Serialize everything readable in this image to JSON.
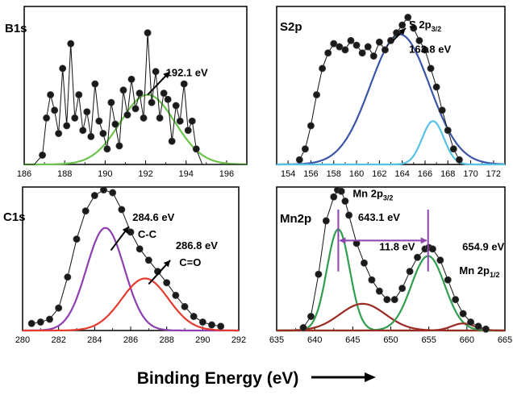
{
  "xlabel": "Binding Energy (eV)",
  "chart_data": [
    {
      "type": "line",
      "panel_label": "B1s",
      "xlim": [
        186,
        197
      ],
      "xticks": [
        186,
        188,
        190,
        192,
        194,
        196
      ],
      "annotations": [
        {
          "text": "192.1 eV",
          "x": 193.0,
          "y": 0.57
        }
      ],
      "series": [
        {
          "role": "data",
          "style": "dots",
          "color": "#111111",
          "x": [
            186.0,
            186.5,
            186.9,
            187.1,
            187.3,
            187.5,
            187.7,
            187.9,
            188.1,
            188.3,
            188.5,
            188.7,
            188.9,
            189.1,
            189.3,
            189.5,
            189.7,
            189.9,
            190.1,
            190.3,
            190.5,
            190.7,
            190.9,
            191.1,
            191.3,
            191.5,
            191.7,
            191.9,
            192.1,
            192.3,
            192.5,
            192.7,
            192.9,
            193.1,
            193.3,
            193.5,
            193.7,
            193.9,
            194.1,
            194.3,
            194.5,
            194.8,
            195.2,
            195.8,
            196.4,
            197.0
          ],
          "y": [
            0.0,
            0.0,
            0.06,
            0.3,
            0.45,
            0.35,
            0.2,
            0.62,
            0.25,
            0.78,
            0.3,
            0.45,
            0.22,
            0.34,
            0.18,
            0.52,
            0.28,
            0.2,
            0.1,
            0.4,
            0.26,
            0.12,
            0.48,
            0.32,
            0.55,
            0.36,
            0.46,
            0.3,
            0.85,
            0.4,
            0.6,
            0.3,
            0.46,
            0.42,
            0.15,
            0.38,
            0.28,
            0.52,
            0.22,
            0.28,
            0.1,
            0.0,
            0.0,
            0.0,
            0.0,
            0.0
          ]
        },
        {
          "role": "fit",
          "name": "",
          "color": "#6cc24a",
          "peak": 192.1,
          "height": 0.45,
          "sigma": 1.35
        }
      ]
    },
    {
      "type": "line",
      "panel_label": "S2p",
      "xlim": [
        153,
        173
      ],
      "xticks": [
        154,
        156,
        158,
        160,
        162,
        164,
        166,
        168,
        170,
        172
      ],
      "annotations": [
        {
          "text": "S 2p3/2",
          "main": "S 2p",
          "sub": "3/2",
          "x": 164.6,
          "y": 0.88
        },
        {
          "text": "163.8 eV",
          "x": 164.6,
          "y": 0.72
        }
      ],
      "series": [
        {
          "role": "data",
          "style": "dots",
          "color": "#111111",
          "x": [
            155.0,
            155.5,
            156.0,
            156.5,
            157.0,
            157.5,
            158.0,
            158.5,
            159.0,
            159.5,
            160.0,
            160.5,
            161.0,
            161.5,
            162.0,
            162.5,
            163.0,
            163.5,
            164.0,
            164.5,
            165.0,
            165.5,
            166.0,
            166.5,
            167.0,
            167.5,
            168.0,
            168.5,
            169.0
          ],
          "y": [
            0.03,
            0.1,
            0.25,
            0.45,
            0.62,
            0.72,
            0.78,
            0.76,
            0.74,
            0.8,
            0.77,
            0.72,
            0.76,
            0.7,
            0.79,
            0.74,
            0.8,
            0.85,
            0.9,
            0.95,
            0.88,
            0.8,
            0.74,
            0.62,
            0.5,
            0.35,
            0.22,
            0.1,
            0.03
          ]
        },
        {
          "role": "fit",
          "name": "",
          "color": "#3b56a8",
          "peak": 163.8,
          "height": 0.84,
          "sigma": 2.6
        },
        {
          "role": "fit",
          "name": "",
          "color": "#55c2e3",
          "peak": 166.7,
          "height": 0.28,
          "sigma": 0.95
        }
      ]
    },
    {
      "type": "line",
      "panel_label": "C1s",
      "xlim": [
        280,
        292
      ],
      "xticks": [
        280,
        282,
        284,
        286,
        288,
        290,
        292
      ],
      "annotations": [
        {
          "text": "284.6 eV",
          "x": 286.1,
          "y": 0.78
        },
        {
          "text": "C-C",
          "x": 286.4,
          "y": 0.66
        },
        {
          "text": "286.8 eV",
          "x": 288.5,
          "y": 0.58
        },
        {
          "text": "C=O",
          "x": 288.7,
          "y": 0.46
        }
      ],
      "series": [
        {
          "role": "data",
          "style": "dots",
          "color": "#111111",
          "x": [
            280.5,
            281.0,
            281.5,
            282.0,
            282.5,
            283.0,
            283.5,
            284.0,
            284.5,
            285.0,
            285.5,
            286.0,
            286.5,
            287.0,
            287.5,
            288.0,
            288.5,
            289.0,
            289.5,
            290.0,
            290.5,
            291.0
          ],
          "y": [
            0.05,
            0.06,
            0.08,
            0.16,
            0.38,
            0.65,
            0.85,
            0.96,
            1.0,
            0.98,
            0.86,
            0.7,
            0.58,
            0.5,
            0.42,
            0.34,
            0.25,
            0.17,
            0.1,
            0.06,
            0.04,
            0.03
          ]
        },
        {
          "role": "fit",
          "name": "",
          "color": "#8b3fb0",
          "peak": 284.6,
          "height": 0.73,
          "sigma": 1.05
        },
        {
          "role": "fit",
          "name": "",
          "color": "#e53b2f",
          "peak": 286.8,
          "height": 0.37,
          "sigma": 1.3
        }
      ]
    },
    {
      "type": "line",
      "panel_label": "Mn2p",
      "xlim": [
        635,
        665
      ],
      "xticks": [
        635,
        640,
        645,
        650,
        655,
        660,
        665
      ],
      "annotations": [
        {
          "text": "Mn 2p3/2",
          "main": "Mn 2p",
          "sub": "3/2",
          "x": 645.0,
          "y": 0.95
        },
        {
          "text": "643.1 eV",
          "x": 645.7,
          "y": 0.78
        },
        {
          "text": "11.8 eV",
          "x": 648.5,
          "y": 0.57
        },
        {
          "text": "654.9 eV",
          "x": 659.4,
          "y": 0.57
        },
        {
          "text": "Mn 2p1/2",
          "main": "Mn 2p",
          "sub": "1/2",
          "x": 659.0,
          "y": 0.4
        }
      ],
      "series": [
        {
          "role": "data",
          "style": "dots",
          "color": "#111111",
          "x": [
            638.5,
            639.5,
            640.5,
            641.5,
            642.5,
            643.0,
            643.5,
            644.0,
            644.5,
            645.5,
            646.5,
            647.5,
            648.5,
            649.5,
            650.5,
            651.5,
            652.5,
            653.5,
            654.5,
            655.0,
            655.5,
            656.5,
            657.5,
            658.5,
            659.5,
            660.5,
            661.5,
            662.5
          ],
          "y": [
            0.02,
            0.1,
            0.4,
            0.78,
            0.95,
            1.0,
            0.99,
            0.92,
            0.82,
            0.62,
            0.48,
            0.36,
            0.28,
            0.22,
            0.22,
            0.3,
            0.42,
            0.52,
            0.58,
            0.59,
            0.58,
            0.5,
            0.36,
            0.22,
            0.12,
            0.06,
            0.03,
            0.01
          ]
        },
        {
          "role": "fit",
          "name": "",
          "color": "#2f9e4e",
          "peak": 643.1,
          "height": 0.72,
          "sigma": 1.5
        },
        {
          "role": "fit",
          "name": "",
          "color": "#9c2a22",
          "peak": 646.3,
          "height": 0.19,
          "sigma": 3.0
        },
        {
          "role": "fit",
          "name": "",
          "color": "#2f9e4e",
          "peak": 654.9,
          "height": 0.53,
          "sigma": 2.2
        },
        {
          "role": "fit",
          "name": "",
          "color": "#9c2a22",
          "peak": 659.5,
          "height": 0.05,
          "sigma": 1.5
        }
      ],
      "markers": [
        {
          "x": 643.1,
          "color": "#8e44ad"
        },
        {
          "x": 654.9,
          "color": "#8e44ad"
        }
      ]
    }
  ]
}
